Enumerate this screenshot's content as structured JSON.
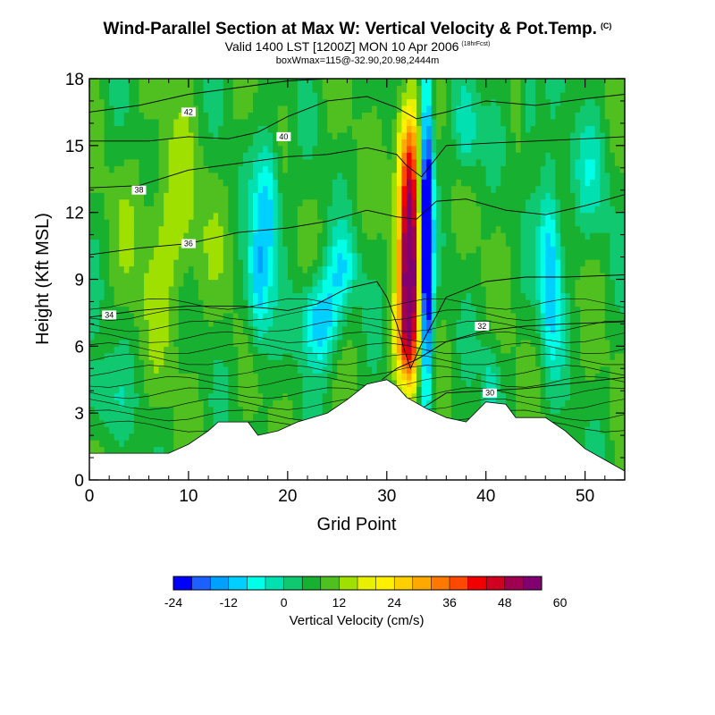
{
  "header": {
    "title": "Wind-Parallel Section at Max W: Vertical Velocity & Pot.Temp.",
    "copyright": "(C)",
    "valid": "Valid 1400 LST [1200Z] MON 10 Apr 2006",
    "forecast": "(18hrFcst)",
    "box_info": "boxWmax=115@-32.90,20.98,2444m"
  },
  "chart_data": {
    "type": "heatmap",
    "title": "Wind-Parallel Section at Max W: Vertical Velocity & Pot.Temp.",
    "xlabel": "Grid Point",
    "ylabel": "Height (Kft MSL)",
    "xlim": [
      0,
      54
    ],
    "ylim": [
      0,
      18
    ],
    "x_ticks": [
      "0",
      "10",
      "20",
      "30",
      "40",
      "50"
    ],
    "y_ticks": [
      "0",
      "3",
      "6",
      "9",
      "12",
      "15",
      "18"
    ],
    "colorbar": {
      "label": "Vertical Velocity (cm/s)",
      "tick_labels": [
        "-24",
        "-12",
        "0",
        "12",
        "24",
        "36",
        "48",
        "60"
      ],
      "colors": [
        "#0000ff",
        "#1c60ff",
        "#00a0ff",
        "#00d0ff",
        "#00ffe8",
        "#00e0b0",
        "#10c870",
        "#18b030",
        "#50c020",
        "#a0e000",
        "#e8f000",
        "#fff000",
        "#ffd000",
        "#ffa800",
        "#ff7800",
        "#ff4800",
        "#f00000",
        "#d00020",
        "#a00050",
        "#800070"
      ]
    },
    "updraft": {
      "x": 32.3,
      "peak_height": 9.5,
      "peak_w": 52
    },
    "downdrafts": [
      {
        "x": 34,
        "w": -24
      },
      {
        "x": 18,
        "w": -14
      },
      {
        "x": 23.5,
        "w": -14
      },
      {
        "x": 46.5,
        "w": -12
      },
      {
        "x": 38,
        "w": -6
      }
    ],
    "terrain": [
      [
        0,
        1.2
      ],
      [
        8,
        1.2
      ],
      [
        10,
        1.6
      ],
      [
        12,
        2.2
      ],
      [
        13,
        2.6
      ],
      [
        16,
        2.6
      ],
      [
        17,
        2.0
      ],
      [
        19,
        2.2
      ],
      [
        21,
        2.6
      ],
      [
        24,
        3.0
      ],
      [
        26,
        3.6
      ],
      [
        28,
        4.3
      ],
      [
        30,
        4.5
      ],
      [
        31,
        4.2
      ],
      [
        32,
        3.7
      ],
      [
        34,
        3.2
      ],
      [
        36,
        2.8
      ],
      [
        38,
        2.6
      ],
      [
        40,
        3.5
      ],
      [
        42,
        3.4
      ],
      [
        43,
        2.8
      ],
      [
        46,
        2.8
      ],
      [
        48,
        2.2
      ],
      [
        50,
        1.4
      ],
      [
        52,
        0.9
      ],
      [
        54,
        0.4
      ]
    ],
    "theta_contours": [
      {
        "label": "42",
        "pts": [
          [
            0,
            16.5
          ],
          [
            5,
            16.8
          ],
          [
            10,
            17.3
          ],
          [
            15,
            17.6
          ],
          [
            20,
            17.9
          ],
          [
            24,
            18
          ]
        ],
        "lx": 10,
        "ly": 16.5
      },
      {
        "label": "40",
        "pts": [
          [
            0,
            15.2
          ],
          [
            6,
            15.2
          ],
          [
            10,
            15.4
          ],
          [
            14,
            15.3
          ],
          [
            17,
            15.6
          ],
          [
            20,
            16.3
          ],
          [
            24,
            17.0
          ],
          [
            28,
            17.2
          ],
          [
            31,
            16.7
          ],
          [
            33,
            16.2
          ],
          [
            36,
            16.5
          ],
          [
            40,
            17.0
          ],
          [
            45,
            16.8
          ],
          [
            50,
            17.1
          ],
          [
            54,
            17.3
          ]
        ],
        "lx": 19.6,
        "ly": 15.4
      },
      {
        "label": "38",
        "pts": [
          [
            0,
            13.1
          ],
          [
            5,
            13.2
          ],
          [
            10,
            13.9
          ],
          [
            15,
            14.2
          ],
          [
            20,
            14.5
          ],
          [
            24,
            14.6
          ],
          [
            28,
            14.9
          ],
          [
            31,
            14.6
          ],
          [
            32,
            14.1
          ],
          [
            33.5,
            13.6
          ],
          [
            36,
            15.0
          ],
          [
            40,
            15.1
          ],
          [
            45,
            15.2
          ],
          [
            50,
            15.3
          ],
          [
            54,
            15.4
          ]
        ],
        "lx": 5,
        "ly": 13.0
      },
      {
        "label": "36",
        "pts": [
          [
            0,
            10.1
          ],
          [
            5,
            10.4
          ],
          [
            10,
            10.6
          ],
          [
            15,
            11.1
          ],
          [
            20,
            11.3
          ],
          [
            24,
            11.6
          ],
          [
            28,
            12.1
          ],
          [
            31,
            11.8
          ],
          [
            33,
            11.7
          ],
          [
            35,
            12.5
          ],
          [
            38,
            12.6
          ],
          [
            42,
            12.1
          ],
          [
            46,
            11.9
          ],
          [
            50,
            12.3
          ],
          [
            54,
            12.8
          ]
        ],
        "lx": 10,
        "ly": 10.6
      },
      {
        "label": "34",
        "pts": [
          [
            0,
            7.3
          ],
          [
            5,
            7.6
          ],
          [
            10,
            7.8
          ],
          [
            15,
            7.8
          ],
          [
            18,
            7.7
          ],
          [
            20,
            7.6
          ],
          [
            23,
            7.9
          ],
          [
            26,
            8.6
          ],
          [
            29,
            8.9
          ],
          [
            30,
            8.2
          ],
          [
            31,
            7.0
          ],
          [
            31.8,
            5.8
          ],
          [
            32.4,
            5.0
          ],
          [
            33.5,
            6.1
          ],
          [
            36,
            8.2
          ],
          [
            40,
            8.9
          ],
          [
            44,
            9.1
          ],
          [
            48,
            9.1
          ],
          [
            54,
            9.2
          ]
        ],
        "lx": 2,
        "ly": 7.4
      },
      {
        "label": "32",
        "pts": [
          [
            29.5,
            4.5
          ],
          [
            31,
            5.0
          ],
          [
            33,
            5.4
          ],
          [
            36,
            6.2
          ],
          [
            40,
            6.7
          ],
          [
            44,
            6.9
          ],
          [
            48,
            7.0
          ],
          [
            54,
            7.1
          ]
        ],
        "lx": 39.6,
        "ly": 6.9
      },
      {
        "label": "30",
        "pts": [
          [
            33.5,
            3.2
          ],
          [
            36,
            3.9
          ],
          [
            40,
            4.0
          ],
          [
            44,
            4.1
          ],
          [
            48,
            4.3
          ],
          [
            54,
            4.6
          ]
        ],
        "lx": 40.4,
        "ly": 3.9
      }
    ]
  }
}
